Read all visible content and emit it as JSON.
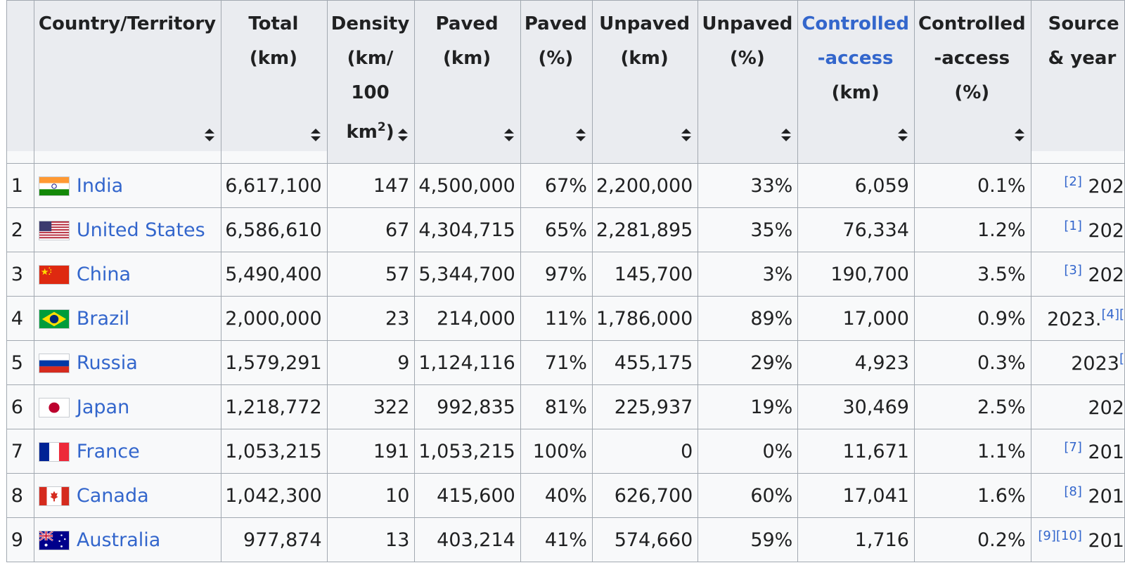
{
  "colors": {
    "link": "#3366cc",
    "header_bg": "#eaecf0",
    "cell_bg": "#f8f9fa",
    "border": "#a2a9b1"
  },
  "header": {
    "country": "Country/Territory",
    "total": [
      "Total",
      "(km)"
    ],
    "density": [
      "Density",
      "(km/",
      "100 km",
      "2",
      ")"
    ],
    "paved_km": [
      "Paved",
      "(km)"
    ],
    "paved_pct": [
      "Paved",
      "(%)"
    ],
    "unpaved_km": [
      "Unpaved",
      "(km)"
    ],
    "unpaved_pct": [
      "Unpaved",
      "(%)"
    ],
    "ctrl_km": [
      "Controlled",
      "-access",
      "(km)"
    ],
    "ctrl_pct": [
      "Controlled",
      "-access",
      "(%)"
    ],
    "source": [
      "Source",
      "& year"
    ],
    "sort_icon": "sort-both-arrows-icon"
  },
  "rows": [
    {
      "rank": "1",
      "flag": "flag-india",
      "country": "India",
      "total": "6,617,100",
      "density": "147",
      "paved_km": "4,500,000",
      "paved_pct": "67%",
      "unpaved_km": "2,200,000",
      "unpaved_pct": "33%",
      "ctrl_km": "6,059",
      "ctrl_pct": "0.1%",
      "ref": "[2]",
      "year": "202"
    },
    {
      "rank": "2",
      "flag": "flag-united-states",
      "country": "United States",
      "total": "6,586,610",
      "density": "67",
      "paved_km": "4,304,715",
      "paved_pct": "65%",
      "unpaved_km": "2,281,895",
      "unpaved_pct": "35%",
      "ctrl_km": "76,334",
      "ctrl_pct": "1.2%",
      "ref": "[1]",
      "year": "202"
    },
    {
      "rank": "3",
      "flag": "flag-china",
      "country": "China",
      "total": "5,490,400",
      "density": "57",
      "paved_km": "5,344,700",
      "paved_pct": "97%",
      "unpaved_km": "145,700",
      "unpaved_pct": "3%",
      "ctrl_km": "190,700",
      "ctrl_pct": "3.5%",
      "ref": "[3]",
      "year": "202"
    },
    {
      "rank": "4",
      "flag": "flag-brazil",
      "country": "Brazil",
      "total": "2,000,000",
      "density": "23",
      "paved_km": "214,000",
      "paved_pct": "11%",
      "unpaved_km": "1,786,000",
      "unpaved_pct": "89%",
      "ctrl_km": "17,000",
      "ctrl_pct": "0.9%",
      "year": "2023.",
      "ref": "[4][",
      "ref_after": true
    },
    {
      "rank": "5",
      "flag": "flag-russia",
      "country": "Russia",
      "total": "1,579,291",
      "density": "9",
      "paved_km": "1,124,116",
      "paved_pct": "71%",
      "unpaved_km": "455,175",
      "unpaved_pct": "29%",
      "ctrl_km": "4,923",
      "ctrl_pct": "0.3%",
      "year": "2023",
      "ref": "[",
      "ref_after": true
    },
    {
      "rank": "6",
      "flag": "flag-japan",
      "country": "Japan",
      "total": "1,218,772",
      "density": "322",
      "paved_km": "992,835",
      "paved_pct": "81%",
      "unpaved_km": "225,937",
      "unpaved_pct": "19%",
      "ctrl_km": "30,469",
      "ctrl_pct": "2.5%",
      "ref": "",
      "year": "202"
    },
    {
      "rank": "7",
      "flag": "flag-france",
      "country": "France",
      "total": "1,053,215",
      "density": "191",
      "paved_km": "1,053,215",
      "paved_pct": "100%",
      "unpaved_km": "0",
      "unpaved_pct": "0%",
      "ctrl_km": "11,671",
      "ctrl_pct": "1.1%",
      "ref": "[7]",
      "year": "201"
    },
    {
      "rank": "8",
      "flag": "flag-canada",
      "country": "Canada",
      "total": "1,042,300",
      "density": "10",
      "paved_km": "415,600",
      "paved_pct": "40%",
      "unpaved_km": "626,700",
      "unpaved_pct": "60%",
      "ctrl_km": "17,041",
      "ctrl_pct": "1.6%",
      "ref": "[8]",
      "year": "201"
    },
    {
      "rank": "9",
      "flag": "flag-australia",
      "country": "Australia",
      "total": "977,874",
      "density": "13",
      "paved_km": "403,214",
      "paved_pct": "41%",
      "unpaved_km": "574,660",
      "unpaved_pct": "59%",
      "ctrl_km": "1,716",
      "ctrl_pct": "0.2%",
      "ref": "[9][10]",
      "year": "201"
    }
  ]
}
